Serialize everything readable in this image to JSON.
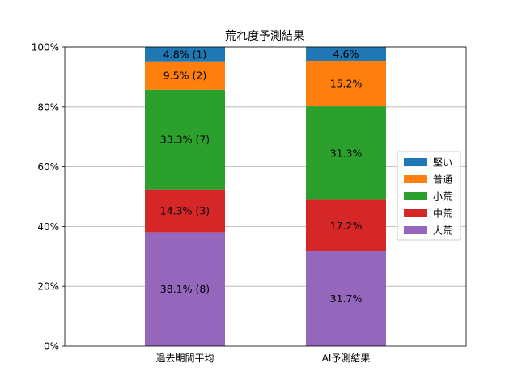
{
  "chart_data": {
    "type": "bar",
    "stacked": true,
    "title": "荒れ度予測結果",
    "xlabel": "",
    "ylabel": "",
    "categories": [
      "過去期間平均",
      "AI予測結果"
    ],
    "ylim": [
      0,
      100
    ],
    "yticks": [
      "0%",
      "20%",
      "40%",
      "60%",
      "80%",
      "100%"
    ],
    "grid": "horizontal",
    "legend_position": "right",
    "series": [
      {
        "name": "大荒",
        "color": "#9467bd",
        "values": [
          38.1,
          31.7
        ],
        "labels": [
          "38.1% (8)",
          "31.7%"
        ]
      },
      {
        "name": "中荒",
        "color": "#d62728",
        "values": [
          14.3,
          17.2
        ],
        "labels": [
          "14.3% (3)",
          "17.2%"
        ]
      },
      {
        "name": "小荒",
        "color": "#2ca02c",
        "values": [
          33.3,
          31.3
        ],
        "labels": [
          "33.3% (7)",
          "31.3%"
        ]
      },
      {
        "name": "普通",
        "color": "#ff7f0e",
        "values": [
          9.5,
          15.2
        ],
        "labels": [
          "9.5% (2)",
          "15.2%"
        ]
      },
      {
        "name": "堅い",
        "color": "#1f77b4",
        "values": [
          4.8,
          4.6
        ],
        "labels": [
          "4.8% (1)",
          "4.6%"
        ]
      }
    ],
    "legend_order": [
      "堅い",
      "普通",
      "小荒",
      "中荒",
      "大荒"
    ]
  }
}
